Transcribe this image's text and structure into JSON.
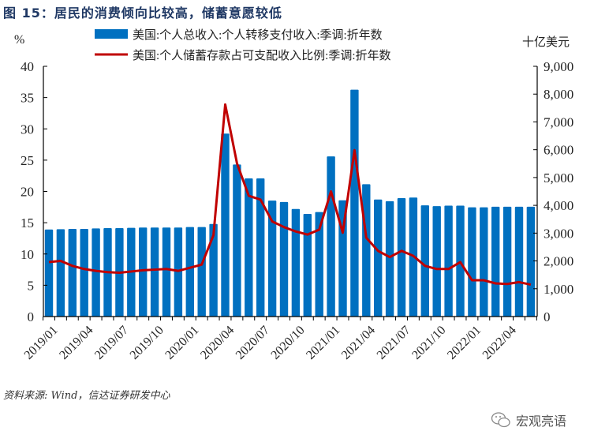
{
  "title": "图 15：居民的消费倾向比较高，储蓄意愿较低",
  "source": "资料来源: Wind，信达证券研发中心",
  "watermark": "宏观亮语",
  "chart_data": {
    "type": "bar+line",
    "categories": [
      "2019/01",
      "2019/02",
      "2019/03",
      "2019/04",
      "2019/05",
      "2019/06",
      "2019/07",
      "2019/08",
      "2019/09",
      "2019/10",
      "2019/11",
      "2019/12",
      "2020/01",
      "2020/02",
      "2020/03",
      "2020/04",
      "2020/05",
      "2020/06",
      "2020/07",
      "2020/08",
      "2020/09",
      "2020/10",
      "2020/11",
      "2020/12",
      "2021/01",
      "2021/02",
      "2021/03",
      "2021/04",
      "2021/05",
      "2021/06",
      "2021/07",
      "2021/08",
      "2021/09",
      "2021/10",
      "2021/11",
      "2021/12",
      "2022/01",
      "2022/02",
      "2022/03",
      "2022/04",
      "2022/05",
      "2022/06"
    ],
    "tick_labels": [
      "2019/01",
      "2019/04",
      "2019/07",
      "2019/10",
      "2020/01",
      "2020/04",
      "2020/07",
      "2020/10",
      "2021/01",
      "2021/04",
      "2021/07",
      "2021/10",
      "2022/01",
      "2022/04"
    ],
    "series": [
      {
        "name": "美国:个人总收入:个人转移支付收入:季调:折年数",
        "type": "bar",
        "axis": "right",
        "color": "#0070c0",
        "values": [
          3130,
          3140,
          3150,
          3150,
          3170,
          3180,
          3180,
          3190,
          3200,
          3200,
          3200,
          3200,
          3220,
          3220,
          3330,
          6580,
          5470,
          4970,
          4970,
          4170,
          4120,
          3870,
          3690,
          3760,
          5760,
          4180,
          8160,
          4760,
          4210,
          4150,
          4260,
          4280,
          4000,
          3970,
          3990,
          3990,
          3930,
          3930,
          3950,
          3950,
          3950,
          3950
        ]
      },
      {
        "name": "美国:个人储蓄存款占可支配收入比例:季调:折年数",
        "type": "line",
        "axis": "left",
        "color": "#c00000",
        "values": [
          8.7,
          8.9,
          8.1,
          7.6,
          7.3,
          7.1,
          7.0,
          7.2,
          7.4,
          7.5,
          7.6,
          7.3,
          7.8,
          8.3,
          13.0,
          33.9,
          24.5,
          19.3,
          18.7,
          15.2,
          14.3,
          13.6,
          13.1,
          13.9,
          20.0,
          13.4,
          26.6,
          12.6,
          10.5,
          9.5,
          10.5,
          9.7,
          8.1,
          7.6,
          7.6,
          8.7,
          5.8,
          5.8,
          5.3,
          5.2,
          5.5,
          5.1
        ]
      }
    ],
    "left_axis": {
      "label": "%",
      "range": [
        0,
        40
      ],
      "ticks": [
        "0",
        "5",
        "10",
        "15",
        "20",
        "25",
        "30",
        "35",
        "40"
      ]
    },
    "right_axis": {
      "label": "十亿美元",
      "range": [
        0,
        9000
      ],
      "ticks": [
        "0",
        "1,000",
        "2,000",
        "3,000",
        "4,000",
        "5,000",
        "6,000",
        "7,000",
        "8,000",
        "9,000"
      ]
    },
    "legend_position": "top",
    "grid": false
  }
}
